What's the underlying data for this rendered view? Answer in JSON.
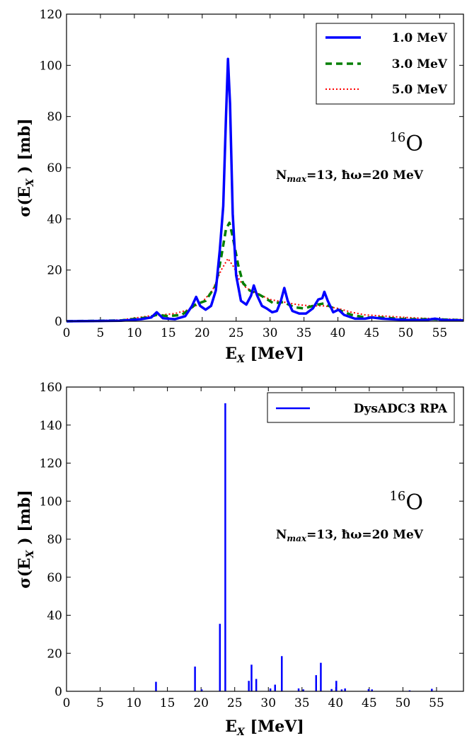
{
  "chart_data": [
    {
      "type": "line",
      "xlabel": "E_X [MeV]",
      "ylabel": "σ(E_X ) [mb]",
      "xlim": [
        0,
        58.5
      ],
      "ylim": [
        0,
        120
      ],
      "xticks": [
        0,
        5,
        10,
        15,
        20,
        25,
        30,
        35,
        40,
        45,
        50,
        55
      ],
      "yticks": [
        0,
        20,
        40,
        60,
        80,
        100,
        120
      ],
      "legend_position": "top-right",
      "annotations": {
        "nucleus": "16O",
        "params": "Nmax=13, ħω=20 MeV"
      },
      "series": [
        {
          "name": "1.0 MeV",
          "color": "#0000ff",
          "style": "solid",
          "points": [
            [
              0,
              0
            ],
            [
              8,
              0.2
            ],
            [
              11,
              0.8
            ],
            [
              12.5,
              1.5
            ],
            [
              13.3,
              3.5
            ],
            [
              14.2,
              1.2
            ],
            [
              16,
              0.8
            ],
            [
              17.5,
              2
            ],
            [
              18.5,
              6
            ],
            [
              19.1,
              9.5
            ],
            [
              19.7,
              6
            ],
            [
              20.5,
              4.5
            ],
            [
              21.3,
              6
            ],
            [
              22,
              12
            ],
            [
              22.6,
              28
            ],
            [
              23.1,
              45
            ],
            [
              23.5,
              80
            ],
            [
              23.8,
              102.5
            ],
            [
              24.1,
              85
            ],
            [
              24.5,
              42
            ],
            [
              25,
              18
            ],
            [
              25.7,
              8
            ],
            [
              26.5,
              6.5
            ],
            [
              27.2,
              10
            ],
            [
              27.6,
              14
            ],
            [
              28.1,
              10
            ],
            [
              28.8,
              6
            ],
            [
              29.5,
              5
            ],
            [
              30.3,
              3.5
            ],
            [
              31,
              4
            ],
            [
              31.6,
              8
            ],
            [
              32.1,
              13
            ],
            [
              32.6,
              8
            ],
            [
              33.3,
              4
            ],
            [
              34.3,
              3
            ],
            [
              35.3,
              3
            ],
            [
              36.3,
              5
            ],
            [
              37.1,
              8.5
            ],
            [
              37.7,
              9
            ],
            [
              38,
              11.5
            ],
            [
              38.5,
              8
            ],
            [
              39.3,
              3.5
            ],
            [
              40.1,
              4.5
            ],
            [
              40.9,
              2.5
            ],
            [
              42.5,
              1
            ],
            [
              44,
              1
            ],
            [
              45,
              1.5
            ],
            [
              46.5,
              1
            ],
            [
              50,
              0.5
            ],
            [
              53,
              0.5
            ],
            [
              54.3,
              1
            ],
            [
              55.5,
              0.5
            ],
            [
              58.5,
              0.3
            ]
          ]
        },
        {
          "name": "3.0 MeV",
          "color": "#007f00",
          "style": "dashed",
          "points": [
            [
              0,
              0
            ],
            [
              8,
              0.3
            ],
            [
              12,
              1.5
            ],
            [
              13.3,
              2.5
            ],
            [
              15,
              2
            ],
            [
              17,
              2.5
            ],
            [
              19,
              6.5
            ],
            [
              20.5,
              8
            ],
            [
              22,
              14
            ],
            [
              22.8,
              25
            ],
            [
              23.5,
              36
            ],
            [
              24,
              38.5
            ],
            [
              24.5,
              33
            ],
            [
              25.3,
              22
            ],
            [
              26,
              15
            ],
            [
              27,
              12
            ],
            [
              28,
              11
            ],
            [
              29,
              9.5
            ],
            [
              30.5,
              7
            ],
            [
              32,
              7.5
            ],
            [
              33.5,
              5.5
            ],
            [
              35,
              5
            ],
            [
              37,
              6.5
            ],
            [
              38,
              7
            ],
            [
              39,
              5.5
            ],
            [
              40.5,
              4
            ],
            [
              42,
              2.5
            ],
            [
              44,
              1.5
            ],
            [
              46,
              1.5
            ],
            [
              50,
              0.8
            ],
            [
              54,
              0.8
            ],
            [
              58.5,
              0.4
            ]
          ]
        },
        {
          "name": "5.0 MeV",
          "color": "#ff0000",
          "style": "dotted",
          "points": [
            [
              0,
              0
            ],
            [
              8,
              0.5
            ],
            [
              12,
              2
            ],
            [
              14,
              2.5
            ],
            [
              16,
              3
            ],
            [
              18,
              4.5
            ],
            [
              20,
              7.5
            ],
            [
              21.5,
              12
            ],
            [
              22.8,
              20
            ],
            [
              23.8,
              24.5
            ],
            [
              24.7,
              21
            ],
            [
              25.5,
              16
            ],
            [
              26.5,
              13
            ],
            [
              28,
              11
            ],
            [
              30,
              8.5
            ],
            [
              32,
              7.5
            ],
            [
              34,
              6.5
            ],
            [
              36,
              6
            ],
            [
              38,
              6
            ],
            [
              40,
              5
            ],
            [
              42,
              3.5
            ],
            [
              44,
              2.5
            ],
            [
              47,
              2
            ],
            [
              50,
              1.5
            ],
            [
              54,
              1
            ],
            [
              58.5,
              0.7
            ]
          ]
        }
      ]
    },
    {
      "type": "bar",
      "xlabel": "E_X [MeV]",
      "ylabel": "σ(E_X ) [mb]",
      "xlim": [
        0,
        59
      ],
      "ylim": [
        0,
        160
      ],
      "xticks": [
        0,
        5,
        10,
        15,
        20,
        25,
        30,
        35,
        40,
        45,
        50,
        55
      ],
      "yticks": [
        0,
        20,
        40,
        60,
        80,
        100,
        120,
        140,
        160
      ],
      "legend_position": "top-right",
      "annotations": {
        "nucleus": "16O",
        "params": "Nmax=13, ħω=20 MeV"
      },
      "series": [
        {
          "name": "DysADC3 RPA",
          "color": "#0000ff",
          "x": [
            13.3,
            19.1,
            20.1,
            22.8,
            23.6,
            27.1,
            27.5,
            28.2,
            30.3,
            31.0,
            32.0,
            34.5,
            35.2,
            37.1,
            37.8,
            39.4,
            40.1,
            40.9,
            41.4,
            44.9,
            45.4,
            51.0,
            54.3
          ],
          "values": [
            5,
            13,
            1,
            35.5,
            151.5,
            5.5,
            14,
            6.5,
            1.5,
            3.5,
            18.5,
            1.5,
            1,
            8.5,
            15,
            1.2,
            5.5,
            1,
            1.5,
            1.2,
            1,
            0.5,
            1.3
          ]
        }
      ]
    }
  ],
  "text": {
    "chart1": {
      "xlabel_main": "E",
      "xlabel_sub": "X",
      "xlabel_rest": " [MeV]",
      "ylabel_main": "σ(E",
      "ylabel_sub": "X",
      "ylabel_rest": " ) [mb]",
      "legend": [
        "1.0 MeV",
        "3.0 MeV",
        "5.0 MeV"
      ],
      "nucleus_mass": "16",
      "nucleus_symbol": "O",
      "params_n": "N",
      "params_sub": "max",
      "params_rest": "=13, ħω=20 MeV"
    },
    "chart2": {
      "xlabel_main": "E",
      "xlabel_sub": "X",
      "xlabel_rest": " [MeV]",
      "ylabel_main": "σ(E",
      "ylabel_sub": "X",
      "ylabel_rest": " ) [mb]",
      "legend": [
        "DysADC3 RPA"
      ],
      "nucleus_mass": "16",
      "nucleus_symbol": "O",
      "params_n": "N",
      "params_sub": "max",
      "params_rest": "=13, ħω=20 MeV"
    }
  }
}
